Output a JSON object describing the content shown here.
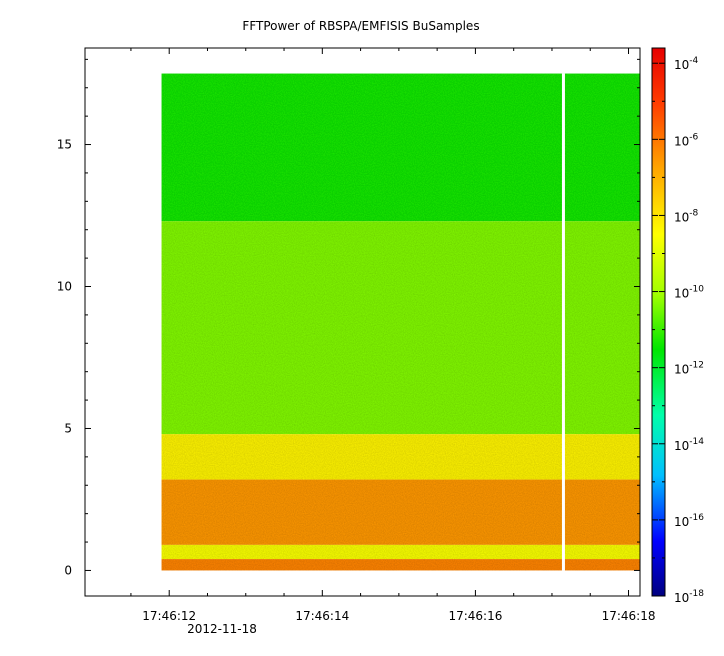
{
  "chart_data": {
    "type": "heatmap",
    "title": "FFTPower of RBSPA/EMFISIS  BuSamples",
    "xlabel": "",
    "ylabel": "",
    "x_tick_labels": [
      "17:46:12",
      "17:46:14",
      "17:46:16",
      "17:46:18"
    ],
    "x_tick_seconds": [
      12,
      14,
      16,
      18
    ],
    "x_date_label": "2012-11-18",
    "xlim_seconds": [
      10.9,
      18.15
    ],
    "y_ticks": [
      0,
      5,
      10,
      15
    ],
    "ylim": [
      -0.9,
      18.4
    ],
    "data_extent": {
      "x_start_seconds": 11.9,
      "x_end_seconds": 18.15,
      "y_max": 17.5
    },
    "gap_at_seconds": 17.15,
    "bands": [
      {
        "y_from": 12.3,
        "y_to": 17.5,
        "log10_power": -11.4
      },
      {
        "y_from": 4.8,
        "y_to": 12.3,
        "log10_power": -10.3
      },
      {
        "y_from": 3.2,
        "y_to": 4.8,
        "log10_power": -8.2
      },
      {
        "y_from": 0.9,
        "y_to": 3.2,
        "log10_power": -6.6
      },
      {
        "y_from": 0.4,
        "y_to": 0.9,
        "log10_power": -8.5
      },
      {
        "y_from": 0.0,
        "y_to": 0.4,
        "log10_power": -6.3
      }
    ],
    "colorbar": {
      "scale": "log",
      "range_exp": [
        -18,
        -3.6
      ],
      "tick_exponents": [
        -4,
        -6,
        -8,
        -10,
        -12,
        -14,
        -16,
        -18
      ],
      "colors": [
        "#00007f",
        "#0000ff",
        "#00bfff",
        "#00ffaa",
        "#00e600",
        "#a0ff00",
        "#ffff00",
        "#ffa500",
        "#ff3c00",
        "#e60000"
      ]
    }
  }
}
